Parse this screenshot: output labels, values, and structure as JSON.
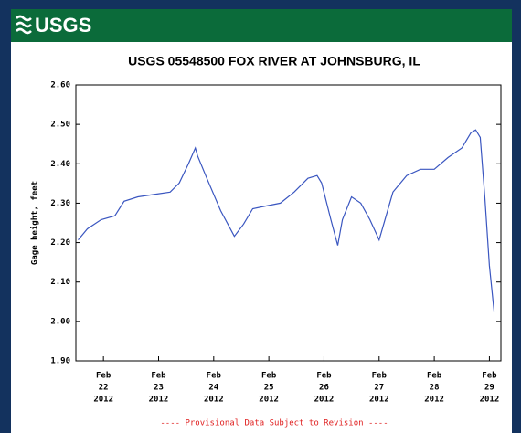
{
  "header": {
    "logo": "USGS"
  },
  "chart_data": {
    "type": "line",
    "title": "USGS 05548500 FOX RIVER AT JOHNSBURG, IL",
    "y_label": "Gage height, feet",
    "footnote": "---- Provisional Data Subject to Revision ----",
    "x": [
      "2012-02-21T13:00",
      "2012-02-21T17:00",
      "2012-02-21T23:00",
      "2012-02-22T05:00",
      "2012-02-22T09:00",
      "2012-02-22T15:00",
      "2012-02-22T23:00",
      "2012-02-23T05:00",
      "2012-02-23T09:00",
      "2012-02-23T13:00",
      "2012-02-23T16:00",
      "2012-02-23T17:00",
      "2012-02-23T21:00",
      "2012-02-24T03:00",
      "2012-02-24T09:00",
      "2012-02-24T13:00",
      "2012-02-24T17:00",
      "2012-02-24T23:00",
      "2012-02-25T05:00",
      "2012-02-25T11:00",
      "2012-02-25T17:00",
      "2012-02-25T21:00",
      "2012-02-25T23:00",
      "2012-02-26T03:00",
      "2012-02-26T06:00",
      "2012-02-26T08:00",
      "2012-02-26T12:00",
      "2012-02-26T16:00",
      "2012-02-26T20:00",
      "2012-02-27T00:00",
      "2012-02-27T02:00",
      "2012-02-27T06:00",
      "2012-02-27T12:00",
      "2012-02-27T18:00",
      "2012-02-28T00:00",
      "2012-02-28T06:00",
      "2012-02-28T12:00",
      "2012-02-28T16:00",
      "2012-02-28T18:00",
      "2012-02-28T20:00",
      "2012-02-28T22:00",
      "2012-02-29T00:00",
      "2012-02-29T02:00"
    ],
    "series": [
      {
        "name": "Gage height",
        "color": "#3a56c0",
        "values": [
          2.207,
          2.235,
          2.258,
          2.268,
          2.305,
          2.316,
          2.323,
          2.328,
          2.351,
          2.4,
          2.44,
          2.42,
          2.363,
          2.281,
          2.216,
          2.247,
          2.286,
          2.293,
          2.3,
          2.328,
          2.363,
          2.37,
          2.351,
          2.258,
          2.193,
          2.258,
          2.316,
          2.3,
          2.258,
          2.207,
          2.247,
          2.328,
          2.37,
          2.386,
          2.386,
          2.416,
          2.44,
          2.479,
          2.486,
          2.467,
          2.316,
          2.142,
          2.026
        ]
      }
    ],
    "xlim": [
      "2012-02-21T12:00",
      "2012-02-29T05:00"
    ],
    "xticks": [
      {
        "value": "2012-02-22T00:00",
        "label": [
          "Feb",
          "22",
          "2012"
        ]
      },
      {
        "value": "2012-02-23T00:00",
        "label": [
          "Feb",
          "23",
          "2012"
        ]
      },
      {
        "value": "2012-02-24T00:00",
        "label": [
          "Feb",
          "24",
          "2012"
        ]
      },
      {
        "value": "2012-02-25T00:00",
        "label": [
          "Feb",
          "25",
          "2012"
        ]
      },
      {
        "value": "2012-02-26T00:00",
        "label": [
          "Feb",
          "26",
          "2012"
        ]
      },
      {
        "value": "2012-02-27T00:00",
        "label": [
          "Feb",
          "27",
          "2012"
        ]
      },
      {
        "value": "2012-02-28T00:00",
        "label": [
          "Feb",
          "28",
          "2012"
        ]
      },
      {
        "value": "2012-02-29T00:00",
        "label": [
          "Feb",
          "29",
          "2012"
        ]
      }
    ],
    "ylim": [
      1.9,
      2.6
    ],
    "yticks": [
      {
        "value": 1.9,
        "label": "1.90"
      },
      {
        "value": 2.0,
        "label": "2.00"
      },
      {
        "value": 2.1,
        "label": "2.10"
      },
      {
        "value": 2.2,
        "label": "2.20"
      },
      {
        "value": 2.3,
        "label": "2.30"
      },
      {
        "value": 2.4,
        "label": "2.40"
      },
      {
        "value": 2.5,
        "label": "2.50"
      },
      {
        "value": 2.6,
        "label": "2.60"
      }
    ],
    "grid": false
  }
}
